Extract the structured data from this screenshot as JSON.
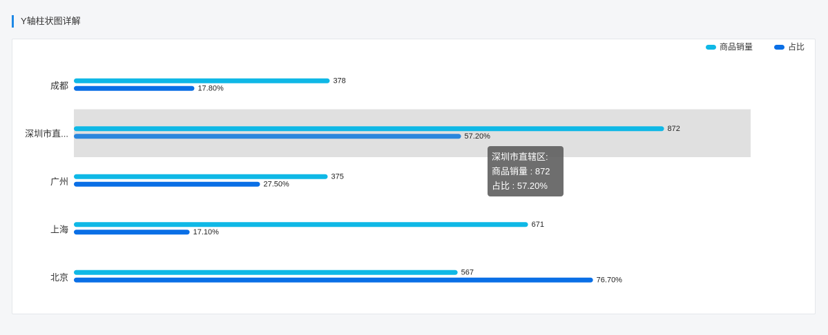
{
  "section": {
    "title": "Y轴柱状图详解"
  },
  "chart_data": {
    "type": "bar",
    "orientation": "horizontal",
    "categories": [
      "成都",
      "深圳市直...",
      "广州",
      "上海",
      "北京"
    ],
    "series": [
      {
        "name": "商品销量",
        "values": [
          378,
          872,
          375,
          671,
          567
        ],
        "labels": [
          "378",
          "872",
          "375",
          "671",
          "567"
        ],
        "color": "#0fb8e6",
        "xlim": [
          0,
          1000
        ]
      },
      {
        "name": "占比",
        "values": [
          17.8,
          57.2,
          27.5,
          17.1,
          76.7
        ],
        "labels": [
          "17.80%",
          "57.20%",
          "27.50%",
          "17.10%",
          "76.70%"
        ],
        "color": "#0a6fe6",
        "xlim": [
          0,
          100
        ]
      }
    ],
    "highlight_index": 1,
    "highlight_color": "#e0e0e0",
    "legend_position": "top-right",
    "grid": false
  },
  "tooltip": {
    "title": "深圳市直辖区:",
    "line1": "商品销量 : 872",
    "line2": "占比 : 57.20%"
  }
}
